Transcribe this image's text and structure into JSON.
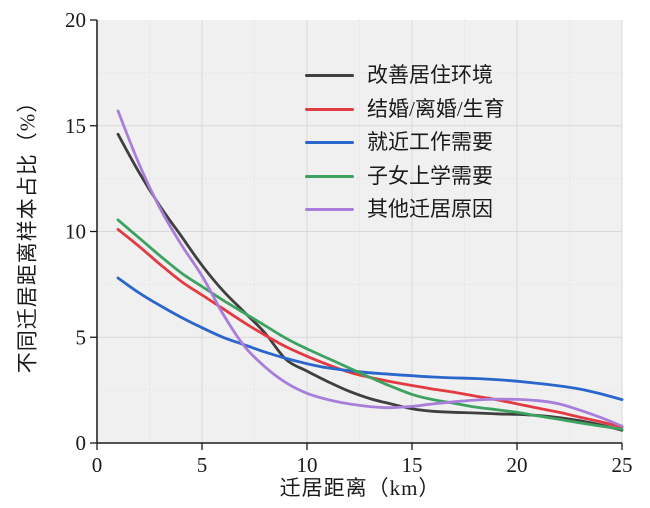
{
  "figure": {
    "background": "#ffffff",
    "plot_background": "#f0f0f0",
    "axis_color": "#1a1a1a",
    "grid_major_color": "#d9d9d9",
    "grid_minor_color": "#e3e3e3",
    "tick_font_px": 21
  },
  "chart_data": {
    "type": "line",
    "title": "",
    "xlabel": "迁居距离（km）",
    "ylabel": "不同迁居距离样本占比（%）",
    "xlim": [
      0,
      25
    ],
    "ylim": [
      0,
      20
    ],
    "xticks": [
      0,
      5,
      10,
      15,
      20,
      25
    ],
    "yticks": [
      0,
      5,
      10,
      15,
      20
    ],
    "grid": "major solid light-gray + minor dotted at 2.5 intervals, gray plot panel",
    "legend_position": "upper right inside plot, no frame",
    "x": [
      1,
      2,
      3,
      4,
      5,
      6,
      7,
      8,
      9,
      10,
      11,
      12,
      13,
      14,
      15,
      16,
      17,
      18,
      19,
      20,
      21,
      22,
      23,
      24,
      25
    ],
    "series": [
      {
        "name": "改善居住环境",
        "color": "#3f3f3f",
        "values": [
          14.6,
          12.8,
          11.2,
          9.8,
          8.4,
          7.2,
          6.2,
          5.2,
          3.95,
          3.4,
          2.9,
          2.45,
          2.1,
          1.85,
          1.62,
          1.5,
          1.45,
          1.42,
          1.38,
          1.35,
          1.3,
          1.2,
          1.05,
          0.85,
          0.6
        ]
      },
      {
        "name": "结婚/离婚/生育",
        "color": "#e23b41",
        "values": [
          10.1,
          9.3,
          8.45,
          7.65,
          7.0,
          6.35,
          5.7,
          5.1,
          4.55,
          4.1,
          3.7,
          3.35,
          3.1,
          2.9,
          2.72,
          2.55,
          2.4,
          2.22,
          2.05,
          1.85,
          1.65,
          1.45,
          1.22,
          1.0,
          0.75
        ]
      },
      {
        "name": "就近工作需要",
        "color": "#2b66cc",
        "values": [
          7.8,
          7.1,
          6.5,
          5.95,
          5.45,
          5.0,
          4.65,
          4.3,
          4.0,
          3.75,
          3.55,
          3.42,
          3.32,
          3.25,
          3.18,
          3.12,
          3.08,
          3.05,
          3.0,
          2.92,
          2.82,
          2.7,
          2.55,
          2.32,
          2.05
        ]
      },
      {
        "name": "子女上学需要",
        "color": "#3da25f",
        "values": [
          10.55,
          9.7,
          8.85,
          8.05,
          7.4,
          6.75,
          6.15,
          5.55,
          4.95,
          4.45,
          4.0,
          3.55,
          3.1,
          2.68,
          2.3,
          2.05,
          1.88,
          1.7,
          1.58,
          1.45,
          1.28,
          1.12,
          0.95,
          0.8,
          0.65
        ]
      },
      {
        "name": "其他迁居原因",
        "color": "#a97edb",
        "values": [
          15.7,
          13.2,
          11.1,
          9.4,
          7.9,
          6.1,
          4.6,
          3.6,
          2.85,
          2.35,
          2.05,
          1.85,
          1.72,
          1.67,
          1.73,
          1.85,
          1.95,
          2.03,
          2.07,
          2.06,
          2.0,
          1.85,
          1.55,
          1.2,
          0.8
        ]
      }
    ]
  }
}
